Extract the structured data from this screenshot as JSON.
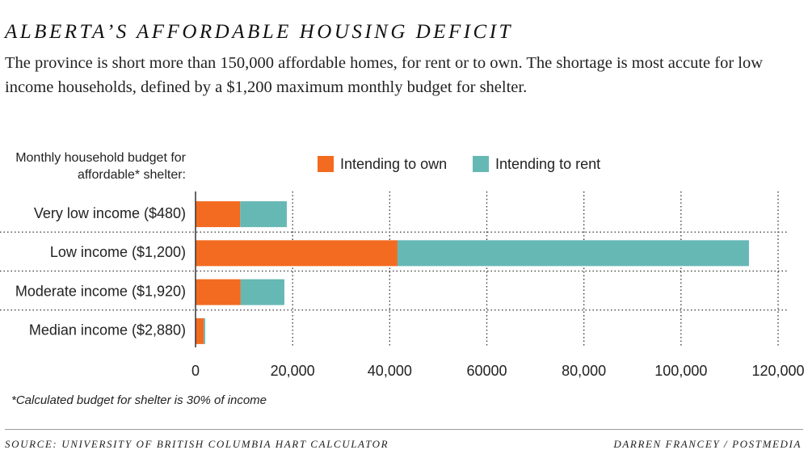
{
  "chart_data": {
    "type": "stacked-hbar",
    "title": "Alberta’s affordable housing deficit",
    "subtitle": "The province is short more than 150,000 affordable homes, for rent or to own. The shortage is most accute for low income households, defined by a $1,200 maximum monthly budget for shelter.",
    "y_axis_label": "Monthly household budget for affordable* shelter:",
    "categories": [
      "Very low income ($480)",
      "Low income ($1,200)",
      "Moderate income ($1,920)",
      "Median income ($2,880)"
    ],
    "series": [
      {
        "name": "Intending to own",
        "color": "#f26b21",
        "values": [
          9200,
          41600,
          9300,
          1700
        ]
      },
      {
        "name": "Intending to rent",
        "color": "#66b8b5",
        "values": [
          9600,
          72400,
          9000,
          300
        ]
      }
    ],
    "xlim": [
      0,
      120000
    ],
    "xticks": [
      0,
      {
        "value": 20000,
        "label": "20,000"
      },
      {
        "value": 40000,
        "label": "40,000"
      },
      60000,
      {
        "value": 80000,
        "label": "80,000"
      },
      {
        "value": 100000,
        "label": "100,000"
      },
      {
        "value": 120000,
        "label": "120,000"
      }
    ],
    "grid": true,
    "footnote": "*Calculated budget for shelter is 30% of income",
    "source": "Source: University of British Columbia HART Calculator",
    "credit": "Darren Francey / Postmedia"
  }
}
